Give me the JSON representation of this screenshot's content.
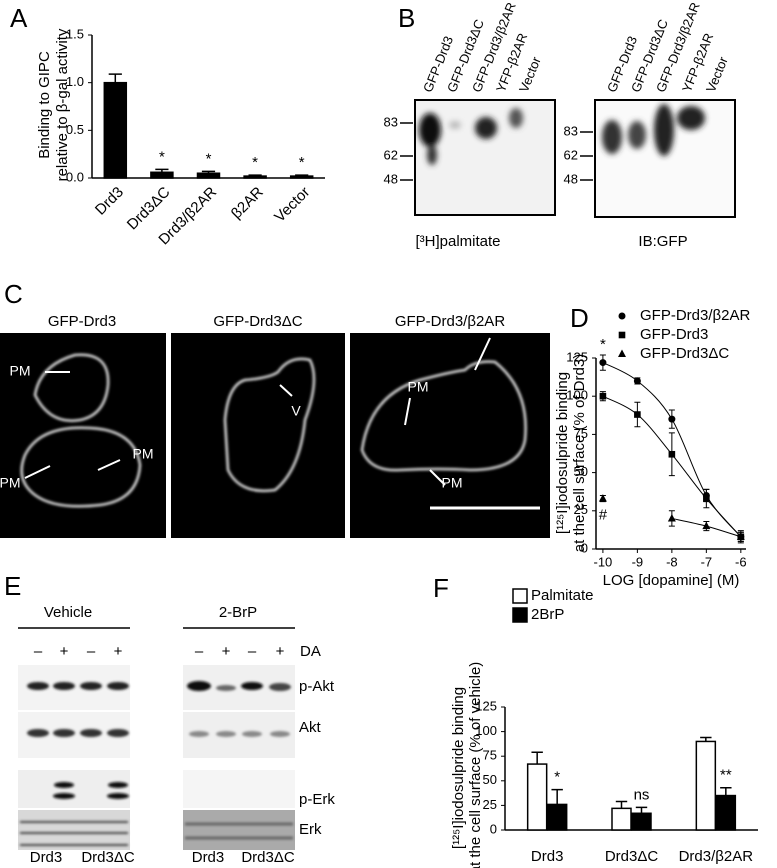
{
  "panels": [
    "A",
    "B",
    "C",
    "D",
    "E",
    "F"
  ],
  "chart_data": [
    {
      "type": "bar",
      "ylabel": [
        "Binding to GIPC",
        "relative to β-gal activity"
      ],
      "categories": [
        "Drd3",
        "Drd3ΔC",
        "Drd3/β2AR",
        "β2AR",
        "Vector"
      ],
      "values": [
        1.0,
        0.06,
        0.05,
        0.02,
        0.02
      ],
      "errors": [
        0.09,
        0.03,
        0.02,
        0.01,
        0.01
      ],
      "color": "#000000",
      "ylim": [
        0,
        1.5
      ],
      "yticks": [
        {
          "value": 0,
          "label": "0.0"
        },
        {
          "value": 0.5,
          "label": "0.5"
        },
        {
          "value": 1,
          "label": "1.0"
        },
        {
          "value": 1.5,
          "label": "1.5"
        }
      ],
      "annotations": [
        {
          "category": "Drd3ΔC",
          "text": "*"
        },
        {
          "category": "Drd3/β2AR",
          "text": "*"
        },
        {
          "category": "β2AR",
          "text": "*"
        },
        {
          "category": "Vector",
          "text": "*"
        }
      ]
    },
    {
      "type": "line",
      "xlabel": "LOG [dopamine] (M)",
      "ylabel": [
        "[¹²⁵I]iodosulpride binding",
        "at the cell surface (% of Drd3)"
      ],
      "x": [
        -10,
        -9,
        -8,
        -7,
        -6
      ],
      "series": [
        {
          "name": "GFP-Drd3/β2AR",
          "marker": "circle",
          "color": "#000000",
          "values": [
            122,
            110,
            85,
            35,
            8
          ],
          "errors": [
            5,
            2,
            6,
            4,
            3
          ]
        },
        {
          "name": "GFP-Drd3",
          "marker": "square",
          "color": "#000000",
          "values": [
            100,
            88,
            62,
            33,
            8
          ],
          "errors": [
            3,
            8,
            14,
            6,
            4
          ]
        },
        {
          "name": "GFP-Drd3ΔC",
          "marker": "triangle",
          "color": "#000000",
          "values": [
            33,
            null,
            20,
            15,
            8
          ],
          "errors": [
            2,
            null,
            5,
            3,
            3
          ]
        }
      ],
      "xlim": [
        -10.2,
        -5.85
      ],
      "xticks": [
        -10,
        -9,
        -8,
        -7,
        -6
      ],
      "ylim": [
        0,
        125
      ],
      "yticks": [
        0,
        25,
        50,
        75,
        100,
        125
      ],
      "legend": "top",
      "annotations": [
        {
          "series": "GFP-Drd3/β2AR",
          "x": -10,
          "text": "*"
        },
        {
          "series": "GFP-Drd3ΔC",
          "x": -10,
          "text": "#"
        }
      ]
    },
    {
      "type": "bar",
      "ylabel": [
        "[¹²⁵I]iodosulpride binding",
        "at the cell surface (% of vehicle)"
      ],
      "categories": [
        "Drd3",
        "Drd3ΔC",
        "Drd3/β2AR"
      ],
      "series": [
        {
          "name": "Palmitate",
          "color": "#ffffff",
          "values": [
            67,
            22,
            90
          ],
          "errors": [
            12,
            7,
            4
          ]
        },
        {
          "name": "2BrP",
          "color": "#000000",
          "values": [
            26,
            17,
            35
          ],
          "errors": [
            15,
            6,
            8
          ]
        }
      ],
      "ylim": [
        0,
        125
      ],
      "yticks": [
        0,
        25,
        50,
        75,
        100,
        125
      ],
      "legend": "top",
      "annotations": [
        {
          "category": "Drd3",
          "text": "*"
        },
        {
          "category": "Drd3ΔC",
          "text": "ns"
        },
        {
          "category": "Drd3/β2AR",
          "text": "**"
        }
      ]
    }
  ],
  "blot_b": {
    "lanes": [
      "GFP-Drd3",
      "GFP-Drd3ΔC",
      "GFP-Drd3/β2AR",
      "YFP-β2AR",
      "Vector"
    ],
    "markers": [
      83,
      62,
      48
    ],
    "captions": [
      "[³H]palmitate",
      "IB:GFP"
    ]
  },
  "micrographs": {
    "titles": [
      "GFP-Drd3",
      "GFP-Drd3ΔC",
      "GFP-Drd3/β2AR"
    ],
    "labels": [
      "PM",
      "PM",
      "PM",
      "V",
      "PM",
      "PM"
    ]
  },
  "blot_e": {
    "conditions": [
      "Vehicle",
      "2-BrP"
    ],
    "treatment": "DA",
    "signs": [
      "–",
      "+",
      "–",
      "+"
    ],
    "bands": [
      "p-Akt",
      "Akt",
      "p-Erk",
      "Erk"
    ],
    "groups": [
      "Drd3",
      "Drd3ΔC"
    ]
  }
}
